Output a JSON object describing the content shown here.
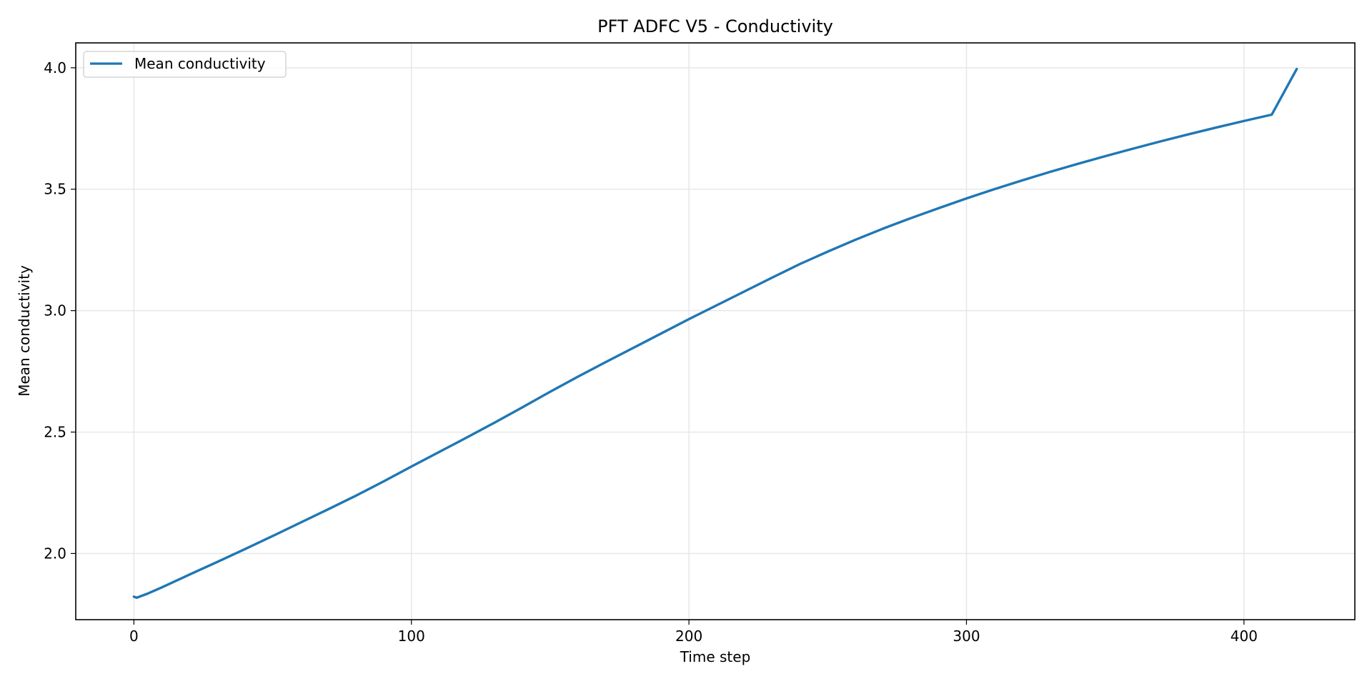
{
  "chart_data": {
    "type": "line",
    "title": "PFT ADFC V5 - Conductivity",
    "xlabel": "Time step",
    "ylabel": "Mean conductivity",
    "xlim": [
      -20.95,
      439.95
    ],
    "ylim": [
      1.7275,
      4.1025
    ],
    "xticks": [
      0,
      100,
      200,
      300,
      400
    ],
    "xtick_labels": [
      "0",
      "100",
      "200",
      "300",
      "400"
    ],
    "yticks": [
      2.0,
      2.5,
      3.0,
      3.5,
      4.0
    ],
    "ytick_labels": [
      "2.0",
      "2.5",
      "3.0",
      "3.5",
      "4.0"
    ],
    "grid": true,
    "legend_position": "upper left",
    "series": [
      {
        "name": "Mean conductivity",
        "color": "#1f77b4",
        "x": [
          0,
          1,
          5,
          10,
          20,
          30,
          40,
          50,
          60,
          70,
          80,
          90,
          100,
          110,
          120,
          130,
          140,
          150,
          160,
          170,
          180,
          190,
          200,
          210,
          220,
          230,
          240,
          250,
          260,
          270,
          280,
          290,
          300,
          310,
          320,
          330,
          340,
          350,
          360,
          370,
          380,
          390,
          400,
          410,
          419
        ],
        "y": [
          1.822,
          1.818,
          1.835,
          1.86,
          1.913,
          1.965,
          2.018,
          2.072,
          2.127,
          2.182,
          2.238,
          2.297,
          2.358,
          2.418,
          2.478,
          2.539,
          2.602,
          2.666,
          2.728,
          2.788,
          2.847,
          2.906,
          2.965,
          3.022,
          3.079,
          3.136,
          3.192,
          3.243,
          3.292,
          3.338,
          3.381,
          3.422,
          3.462,
          3.5,
          3.536,
          3.571,
          3.604,
          3.636,
          3.667,
          3.697,
          3.726,
          3.754,
          3.781,
          3.807,
          3.995
        ]
      }
    ]
  }
}
